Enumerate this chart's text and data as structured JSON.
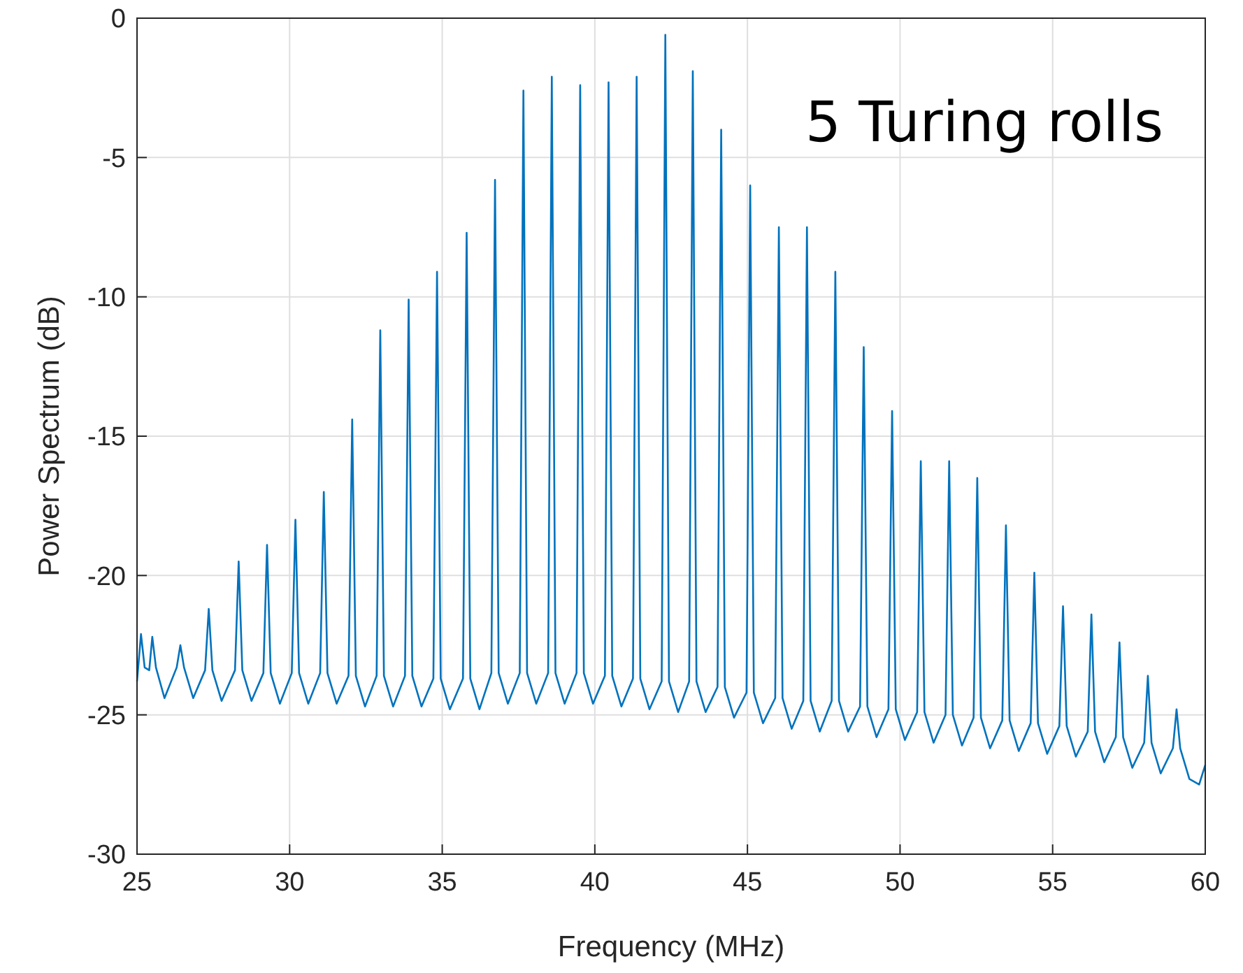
{
  "chart_data": {
    "type": "line",
    "xlabel": "Frequency (MHz)",
    "ylabel": "Power Spectrum (dB)",
    "annotations": [
      "5 Turing rolls"
    ],
    "xlim": [
      25,
      60
    ],
    "xticks": [
      25,
      30,
      35,
      40,
      45,
      50,
      55,
      60
    ],
    "ylim": [
      -30,
      0
    ],
    "yticks": [
      -30,
      -25,
      -20,
      -15,
      -10,
      -5,
      0
    ],
    "grid": true,
    "marker": "none",
    "line_style": "solid",
    "series": [
      {
        "color": "#0072bd",
        "x": [
          25.0,
          25.13,
          25.25,
          25.4,
          25.5,
          25.62,
          25.9,
          26.3,
          26.42,
          26.54,
          26.84,
          27.23,
          27.35,
          27.47,
          27.77,
          28.21,
          28.33,
          28.45,
          28.75,
          29.14,
          29.26,
          29.38,
          29.68,
          30.07,
          30.19,
          30.31,
          30.61,
          31.0,
          31.12,
          31.24,
          31.54,
          31.93,
          32.05,
          32.17,
          32.47,
          32.85,
          32.97,
          33.09,
          33.39,
          33.78,
          33.9,
          34.02,
          34.32,
          34.71,
          34.83,
          34.95,
          35.25,
          35.68,
          35.8,
          35.92,
          36.22,
          36.61,
          36.73,
          36.85,
          37.15,
          37.54,
          37.66,
          37.78,
          38.08,
          38.47,
          38.59,
          38.71,
          39.01,
          39.4,
          39.52,
          39.64,
          39.94,
          40.33,
          40.45,
          40.57,
          40.87,
          41.25,
          41.37,
          41.49,
          41.79,
          42.19,
          42.31,
          42.43,
          42.73,
          43.09,
          43.21,
          43.33,
          43.63,
          44.02,
          44.14,
          44.26,
          44.56,
          44.97,
          45.09,
          45.21,
          45.51,
          45.91,
          46.03,
          46.15,
          46.45,
          46.83,
          46.95,
          47.07,
          47.37,
          47.76,
          47.88,
          48.0,
          48.3,
          48.69,
          48.81,
          48.93,
          49.23,
          49.62,
          49.74,
          49.86,
          50.16,
          50.56,
          50.68,
          50.8,
          51.1,
          51.49,
          51.61,
          51.73,
          52.03,
          52.41,
          52.53,
          52.65,
          52.95,
          53.35,
          53.47,
          53.59,
          53.89,
          54.28,
          54.4,
          54.52,
          54.82,
          55.22,
          55.34,
          55.46,
          55.76,
          56.15,
          56.27,
          56.39,
          56.69,
          57.07,
          57.19,
          57.31,
          57.61,
          58.0,
          58.12,
          58.24,
          58.54,
          58.94,
          59.06,
          59.18,
          59.48,
          59.8,
          60.0
        ],
        "values": [
          -23.8,
          -22.1,
          -23.3,
          -23.4,
          -22.2,
          -23.3,
          -24.4,
          -23.3,
          -22.5,
          -23.3,
          -24.4,
          -23.4,
          -21.2,
          -23.4,
          -24.5,
          -23.4,
          -19.5,
          -23.4,
          -24.5,
          -23.5,
          -18.9,
          -23.5,
          -24.6,
          -23.5,
          -18.0,
          -23.5,
          -24.6,
          -23.5,
          -17.0,
          -23.5,
          -24.6,
          -23.6,
          -14.4,
          -23.6,
          -24.7,
          -23.6,
          -11.2,
          -23.6,
          -24.7,
          -23.6,
          -10.1,
          -23.6,
          -24.7,
          -23.7,
          -9.1,
          -23.7,
          -24.8,
          -23.7,
          -7.7,
          -23.7,
          -24.8,
          -23.5,
          -5.8,
          -23.5,
          -24.6,
          -23.5,
          -2.6,
          -23.5,
          -24.6,
          -23.5,
          -2.1,
          -23.5,
          -24.6,
          -23.5,
          -2.4,
          -23.5,
          -24.6,
          -23.6,
          -2.3,
          -23.6,
          -24.7,
          -23.7,
          -2.1,
          -23.7,
          -24.8,
          -23.8,
          -0.6,
          -23.8,
          -24.9,
          -23.8,
          -1.9,
          -23.8,
          -24.9,
          -24.0,
          -4.0,
          -24.0,
          -25.1,
          -24.2,
          -6.0,
          -24.2,
          -25.3,
          -24.4,
          -7.5,
          -24.4,
          -25.5,
          -24.5,
          -7.5,
          -24.5,
          -25.6,
          -24.5,
          -9.1,
          -24.5,
          -25.6,
          -24.7,
          -11.8,
          -24.7,
          -25.8,
          -24.8,
          -14.1,
          -24.8,
          -25.9,
          -24.9,
          -15.9,
          -24.9,
          -26.0,
          -25.0,
          -15.9,
          -25.0,
          -26.1,
          -25.1,
          -16.5,
          -25.1,
          -26.2,
          -25.2,
          -18.2,
          -25.2,
          -26.3,
          -25.3,
          -19.9,
          -25.3,
          -26.4,
          -25.4,
          -21.1,
          -25.4,
          -26.5,
          -25.6,
          -21.4,
          -25.6,
          -26.7,
          -25.8,
          -22.4,
          -25.8,
          -26.9,
          -26.0,
          -23.6,
          -26.0,
          -27.1,
          -26.2,
          -24.8,
          -26.2,
          -27.3,
          -27.5,
          -26.8
        ]
      }
    ]
  }
}
